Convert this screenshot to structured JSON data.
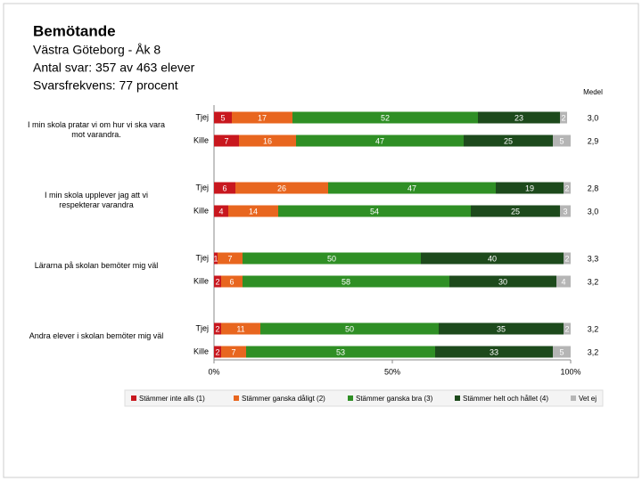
{
  "chart_data": {
    "type": "stacked_bar",
    "orientation": "horizontal",
    "title": "Bemötande",
    "subtitle": [
      "Västra Göteborg - Åk 8",
      "Antal svar: 357 av 463 elever",
      "Svarsfrekvens: 77 procent"
    ],
    "groups": [
      "I min skola pratar vi om hur vi ska vara mot varandra.",
      "I min skola upplever jag att vi respekterar varandra",
      "Lärarna på skolan bemöter mig väl",
      "Andra elever i skolan bemöter mig väl"
    ],
    "categories": [
      "Tjej",
      "Kille",
      "Tjej",
      "Kille",
      "Tjej",
      "Kille",
      "Tjej",
      "Kille"
    ],
    "series": [
      {
        "name": "Stämmer inte alls (1)",
        "color": "#c8171e",
        "values": [
          5,
          7,
          6,
          4,
          1,
          2,
          2,
          2
        ]
      },
      {
        "name": "Stämmer ganska dåligt (2)",
        "color": "#e8661f",
        "values": [
          17,
          16,
          26,
          14,
          7,
          6,
          11,
          7
        ]
      },
      {
        "name": "Stämmer ganska bra (3)",
        "color": "#2f8f25",
        "values": [
          52,
          47,
          47,
          54,
          50,
          58,
          50,
          53
        ]
      },
      {
        "name": "Stämmer helt och hållet (4)",
        "color": "#1d4a1c",
        "values": [
          23,
          25,
          19,
          25,
          40,
          30,
          35,
          33
        ]
      },
      {
        "name": "Vet ej",
        "color": "#b5b5b5",
        "values": [
          2,
          5,
          2,
          3,
          2,
          4,
          2,
          5
        ]
      }
    ],
    "means_title": "Medel",
    "means": {
      "values": [
        3.0,
        2.9,
        2.8,
        3.0,
        3.3,
        3.2,
        3.2,
        3.2
      ],
      "value_labels": [
        "3,0",
        "2,9",
        "2,8",
        "3,0",
        "3,3",
        "3,2",
        "3,2",
        "3,2"
      ]
    },
    "xlim": [
      0,
      100
    ],
    "xticks": [
      {
        "value": 0,
        "label": "0%"
      },
      {
        "value": 50,
        "label": "50%"
      },
      {
        "value": 100,
        "label": "100%"
      }
    ],
    "legend": "bottom"
  }
}
